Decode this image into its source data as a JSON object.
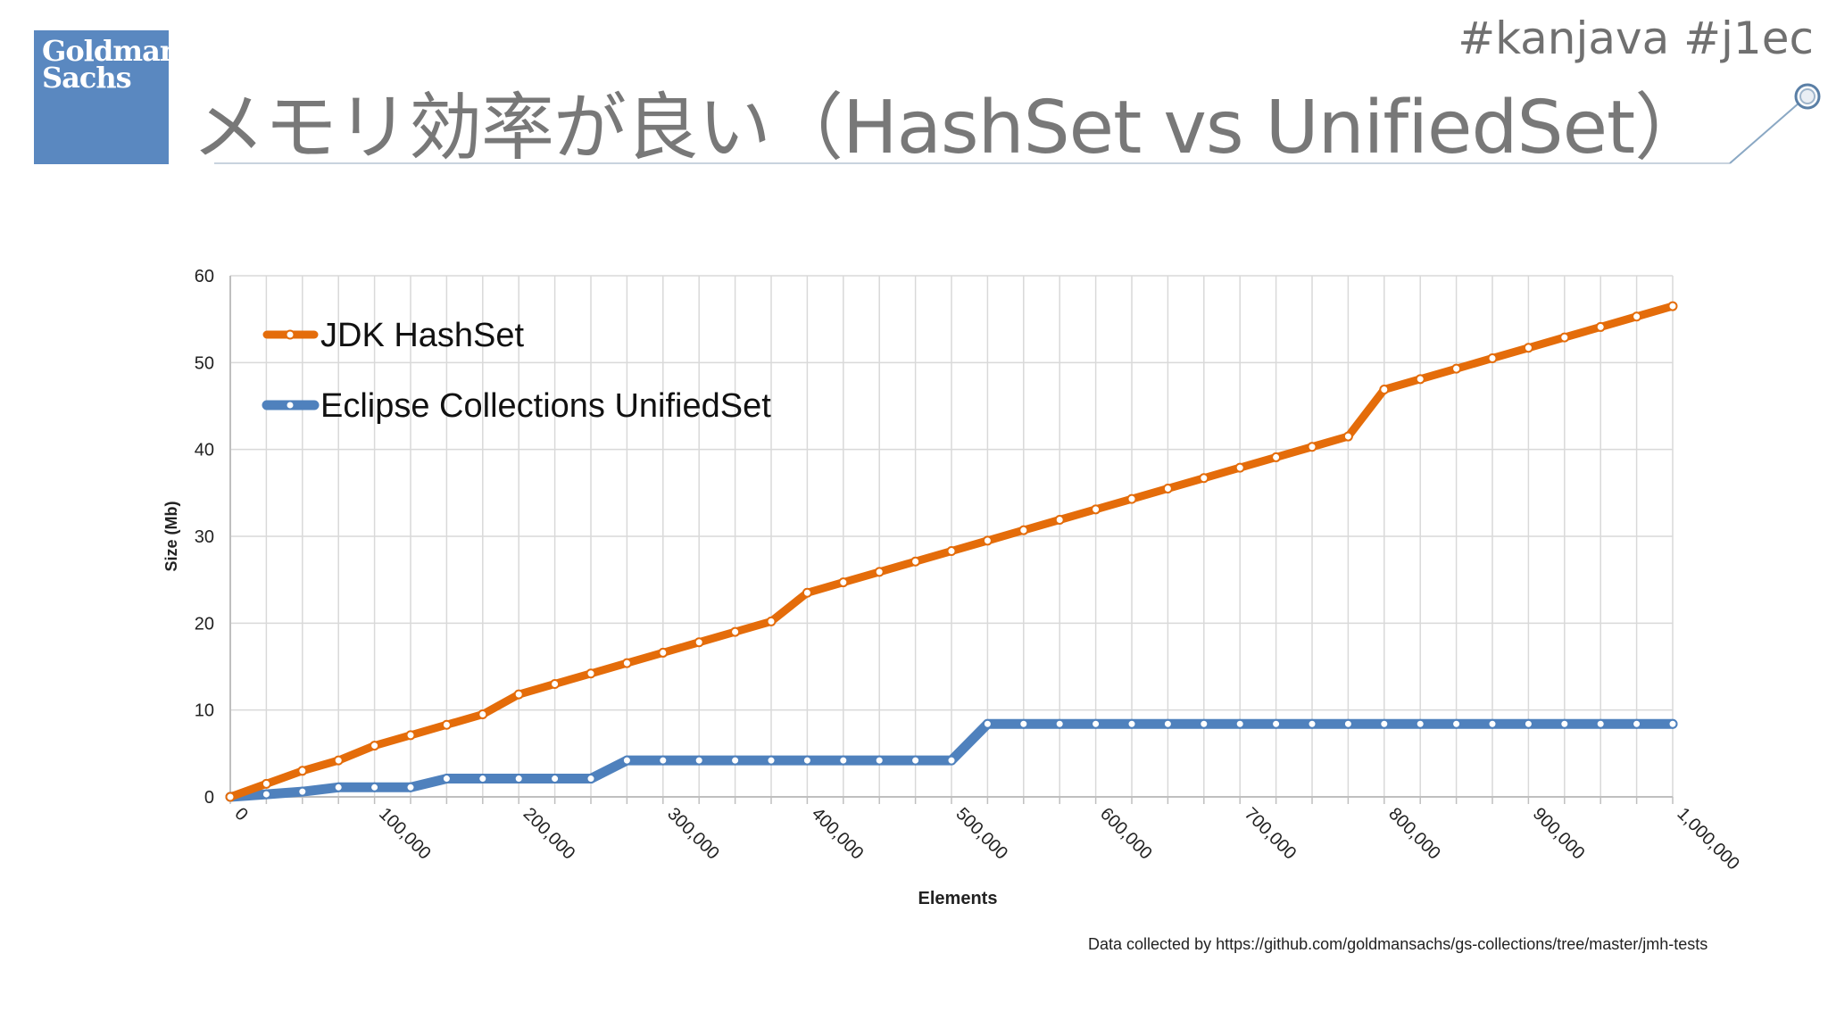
{
  "logo": {
    "line1": "Goldman",
    "line2": "Sachs"
  },
  "hashtags": "#kanjava #j1ec",
  "title": "メモリ効率が良い（HashSet vs UnifiedSet）",
  "footnote": "Data collected by https://github.com/goldmansachs/gs-collections/tree/master/jmh-tests",
  "colors": {
    "hashset": "#e46c0a",
    "unifiedset": "#4f81bd",
    "logo_bg": "#5a88c0",
    "grid": "#d9d9d9"
  },
  "chart_data": {
    "type": "line",
    "xlabel": "Elements",
    "ylabel": "Size (Mb)",
    "xlim": [
      0,
      1000000
    ],
    "ylim": [
      0,
      60
    ],
    "yticks": [
      0,
      10,
      20,
      30,
      40,
      50,
      60
    ],
    "ytick_labels": [
      "0",
      "10",
      "20",
      "30",
      "40",
      "50",
      "60"
    ],
    "xticks": [
      0,
      100000,
      200000,
      300000,
      400000,
      500000,
      600000,
      700000,
      800000,
      900000,
      1000000
    ],
    "xtick_labels": [
      "0",
      "100,000",
      "200,000",
      "300,000",
      "400,000",
      "500,000",
      "600,000",
      "700,000",
      "800,000",
      "900,000",
      "1,000,000"
    ],
    "grid": true,
    "legend_position": "top-left",
    "x": [
      0,
      25000,
      50000,
      75000,
      100000,
      125000,
      150000,
      175000,
      200000,
      225000,
      250000,
      275000,
      300000,
      325000,
      350000,
      375000,
      400000,
      425000,
      450000,
      475000,
      500000,
      525000,
      550000,
      575000,
      600000,
      625000,
      650000,
      675000,
      700000,
      725000,
      750000,
      775000,
      800000,
      825000,
      850000,
      875000,
      900000,
      925000,
      950000,
      975000,
      1000000
    ],
    "series": [
      {
        "name": "JDK HashSet",
        "values": [
          0,
          1.5,
          3.0,
          4.2,
          5.9,
          7.1,
          8.3,
          9.5,
          11.8,
          13.0,
          14.2,
          15.4,
          16.6,
          17.8,
          19.0,
          20.2,
          23.5,
          24.7,
          25.9,
          27.1,
          28.3,
          29.5,
          30.7,
          31.9,
          33.1,
          34.3,
          35.5,
          36.7,
          37.9,
          39.1,
          40.3,
          41.5,
          46.9,
          48.1,
          49.3,
          50.5,
          51.7,
          52.9,
          54.1,
          55.3,
          56.5
        ]
      },
      {
        "name": "Eclipse Collections UnifiedSet",
        "values": [
          0,
          0.3,
          0.6,
          1.1,
          1.1,
          1.1,
          2.1,
          2.1,
          2.1,
          2.1,
          2.1,
          4.2,
          4.2,
          4.2,
          4.2,
          4.2,
          4.2,
          4.2,
          4.2,
          4.2,
          4.2,
          8.4,
          8.4,
          8.4,
          8.4,
          8.4,
          8.4,
          8.4,
          8.4,
          8.4,
          8.4,
          8.4,
          8.4,
          8.4,
          8.4,
          8.4,
          8.4,
          8.4,
          8.4,
          8.4,
          8.4
        ]
      }
    ]
  }
}
